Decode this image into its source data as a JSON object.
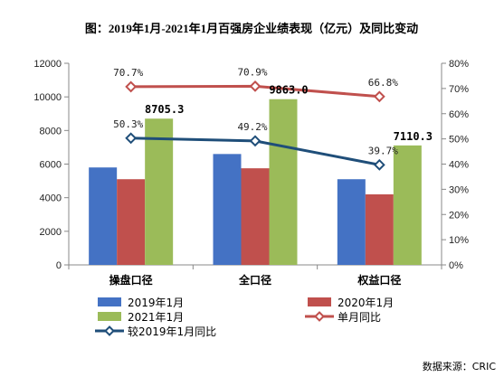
{
  "chart_data": {
    "type": "bar",
    "title": "图：2019年1月-2021年1月百强房企业绩表现（亿元）及同比变动",
    "categories": [
      "操盘口径",
      "全口径",
      "权益口径"
    ],
    "series": [
      {
        "name": "2019年1月",
        "type": "bar",
        "axis": "left",
        "color": "#4472C4",
        "values": [
          5800,
          6600,
          5100
        ]
      },
      {
        "name": "2020年1月",
        "type": "bar",
        "axis": "left",
        "color": "#C0504D",
        "values": [
          5100,
          5750,
          4200
        ]
      },
      {
        "name": "2021年1月",
        "type": "bar",
        "axis": "left",
        "color": "#9BBB59",
        "values": [
          8705.3,
          9863.0,
          7110.3
        ],
        "labels": [
          "8705.3",
          "9863.0",
          "7110.3"
        ]
      },
      {
        "name": "单月同比",
        "type": "line",
        "axis": "right",
        "color": "#C0504D",
        "marker": "diamond-open",
        "values": [
          70.7,
          70.9,
          66.8
        ],
        "labels": [
          "70.7%",
          "70.9%",
          "66.8%"
        ]
      },
      {
        "name": "较2019年1月同比",
        "type": "line",
        "axis": "right",
        "color": "#1F4E79",
        "marker": "diamond-open",
        "values": [
          50.3,
          49.2,
          39.7
        ],
        "labels": [
          "50.3%",
          "49.2%",
          "39.7%"
        ]
      }
    ],
    "y_left": {
      "min": 0,
      "max": 12000,
      "ticks": [
        "0",
        "2000",
        "4000",
        "6000",
        "8000",
        "10000",
        "12000"
      ]
    },
    "y_right": {
      "min": 0,
      "max": 80,
      "ticks": [
        "0%",
        "10%",
        "20%",
        "30%",
        "40%",
        "50%",
        "60%",
        "70%",
        "80%"
      ]
    },
    "grid": false,
    "legend_position": "bottom"
  },
  "source": "数据来源：CRIC"
}
